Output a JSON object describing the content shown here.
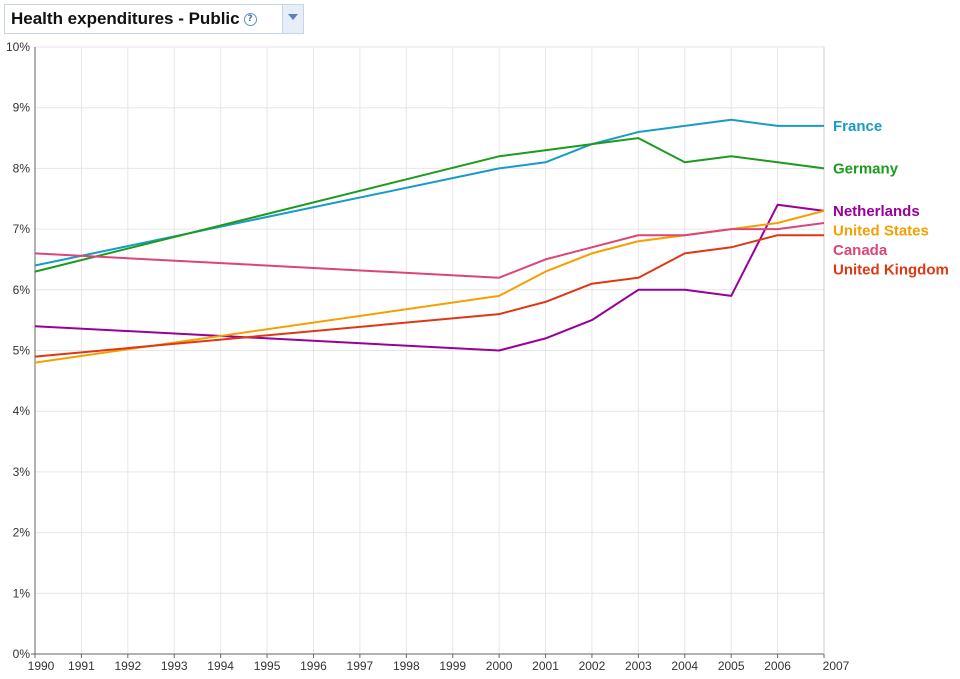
{
  "header": {
    "title": "Health expenditures - Public",
    "help_icon": "help-icon",
    "dropdown_icon": "chevron-down-icon"
  },
  "chart_data": {
    "type": "line",
    "title": "Health expenditures - Public",
    "xlabel": "",
    "ylabel": "",
    "x": [
      1990,
      2000,
      2001,
      2002,
      2003,
      2004,
      2005,
      2006,
      2007
    ],
    "x_ticks": [
      "1990",
      "1991",
      "1992",
      "1993",
      "1994",
      "1995",
      "1996",
      "1997",
      "1998",
      "1999",
      "2000",
      "2001",
      "2002",
      "2003",
      "2004",
      "2005",
      "2006",
      "2007"
    ],
    "y_ticks": [
      "0%",
      "1%",
      "2%",
      "3%",
      "4%",
      "5%",
      "6%",
      "7%",
      "8%",
      "9%",
      "10%"
    ],
    "xlim": [
      1990,
      2007
    ],
    "ylim": [
      0,
      10
    ],
    "grid": true,
    "legend": "right, labels at line ends",
    "series": [
      {
        "name": "France",
        "color": "#1a9bc7",
        "values": [
          6.4,
          8.0,
          8.1,
          8.4,
          8.6,
          8.7,
          8.8,
          8.7,
          8.7
        ]
      },
      {
        "name": "Germany",
        "color": "#1e9a1e",
        "values": [
          6.3,
          8.2,
          8.3,
          8.4,
          8.5,
          8.1,
          8.2,
          8.1,
          8.0
        ]
      },
      {
        "name": "Netherlands",
        "color": "#990099",
        "values": [
          5.4,
          5.0,
          5.2,
          5.5,
          6.0,
          6.0,
          5.9,
          7.4,
          7.3
        ]
      },
      {
        "name": "United States",
        "color": "#f5a000",
        "values": [
          4.8,
          5.9,
          6.3,
          6.6,
          6.8,
          6.9,
          7.0,
          7.1,
          7.3
        ]
      },
      {
        "name": "Canada",
        "color": "#dd4477",
        "values": [
          6.6,
          6.2,
          6.5,
          6.7,
          6.9,
          6.9,
          7.0,
          7.0,
          7.1
        ]
      },
      {
        "name": "United Kingdom",
        "color": "#dc3912",
        "values": [
          4.9,
          5.6,
          5.8,
          6.1,
          6.2,
          6.6,
          6.7,
          6.9,
          6.9
        ]
      }
    ]
  }
}
